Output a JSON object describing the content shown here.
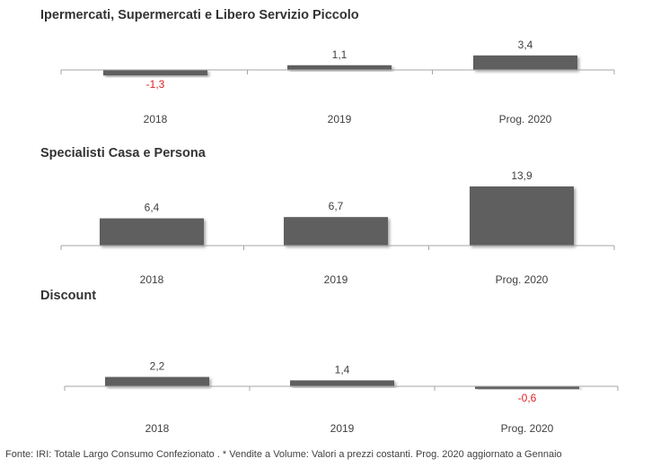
{
  "bar_color": "#5f5f5f",
  "negative_label_color": "#e02020",
  "chart_data": [
    {
      "type": "bar",
      "title": "Ipermercati, Supermercati e Libero Servizio Piccolo",
      "categories": [
        "2018",
        "2019",
        "Prog. 2020"
      ],
      "values": [
        -1.3,
        1.1,
        3.4
      ],
      "value_labels": [
        "-1,3",
        "1,1",
        "3,4"
      ]
    },
    {
      "type": "bar",
      "title": "Specialisti Casa e Persona",
      "categories": [
        "2018",
        "2019",
        "Prog. 2020"
      ],
      "values": [
        6.4,
        6.7,
        13.9
      ],
      "value_labels": [
        "6,4",
        "6,7",
        "13,9"
      ]
    },
    {
      "type": "bar",
      "title": "Discount",
      "categories": [
        "2018",
        "2019",
        "Prog. 2020"
      ],
      "values": [
        2.2,
        1.4,
        -0.6
      ],
      "value_labels": [
        "2,2",
        "1,4",
        "-0,6"
      ]
    }
  ],
  "footnote": "Fonte: IRI: Totale Largo Consumo Confezionato . * Vendite a Volume: Valori a prezzi costanti.   Prog. 2020 aggiornato a Gennaio"
}
